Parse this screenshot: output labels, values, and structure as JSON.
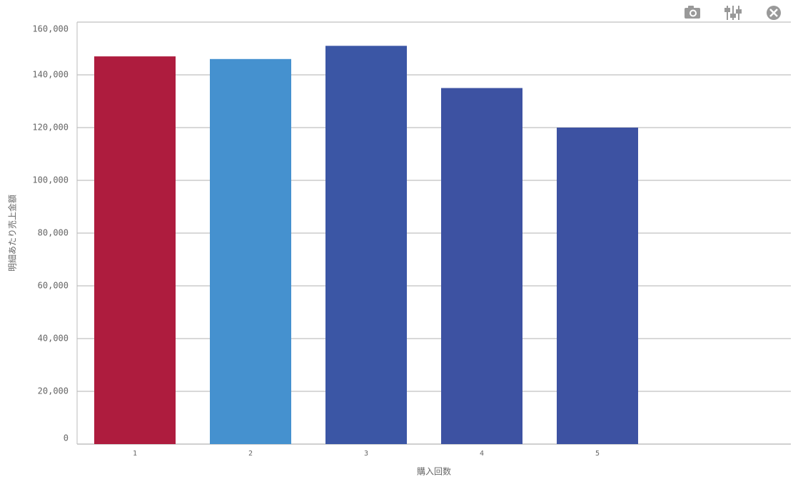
{
  "chart_data": {
    "type": "bar",
    "x_label": "購入回数",
    "y_label": "明細あたり売上金額",
    "categories": [
      "1",
      "2",
      "3",
      "4",
      "5"
    ],
    "values": [
      147000,
      146000,
      151000,
      135000,
      120000
    ],
    "colors": [
      "#ae1c3e",
      "#4591cf",
      "#3b56a5",
      "#3d52a2",
      "#3d52a2"
    ],
    "ylim": [
      0,
      160000
    ],
    "yticks": [
      0,
      {
        "value": 20000,
        "label": "20,000"
      },
      {
        "value": 40000,
        "label": "40,000"
      },
      {
        "value": 60000,
        "label": "60,000"
      },
      {
        "value": 80000,
        "label": "80,000"
      },
      {
        "value": 100000,
        "label": "100,000"
      },
      {
        "value": 120000,
        "label": "120,000"
      },
      {
        "value": 140000,
        "label": "140,000"
      },
      {
        "value": 160000,
        "label": "160,000"
      }
    ],
    "grid": true
  }
}
